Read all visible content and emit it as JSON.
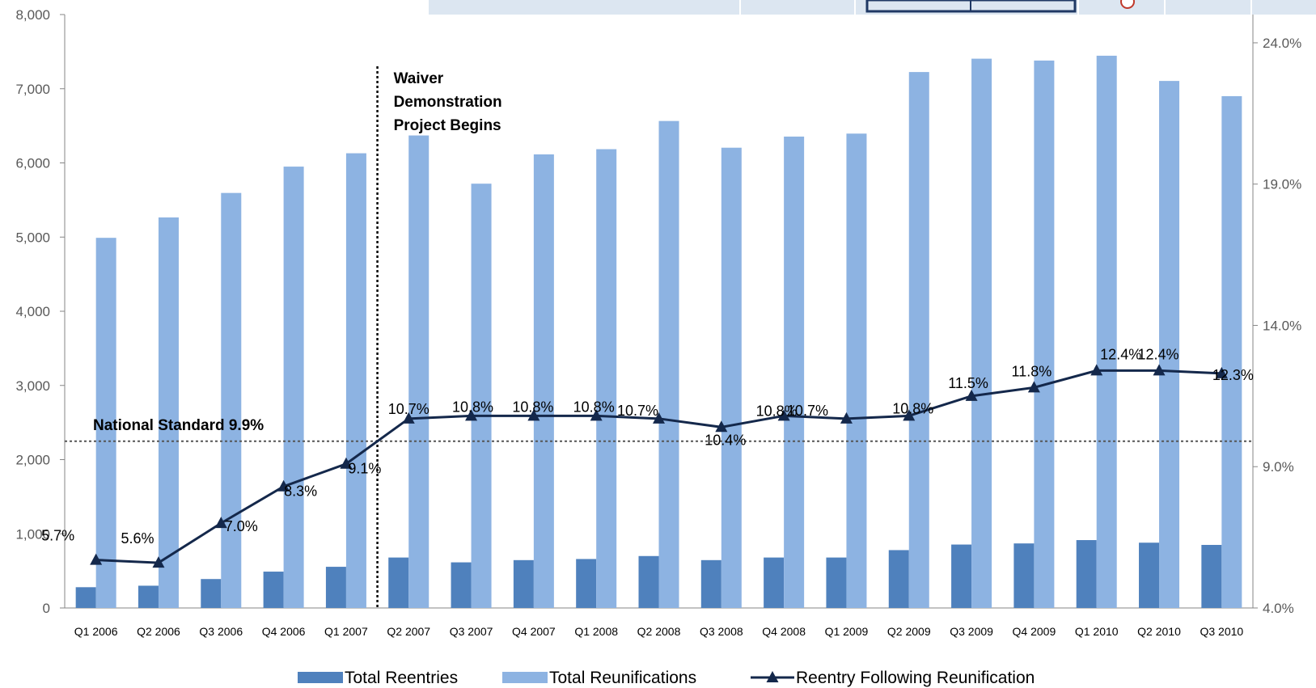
{
  "chart_data": {
    "type": "bar",
    "categories": [
      "Q1 2006",
      "Q2 2006",
      "Q3 2006",
      "Q4 2006",
      "Q1 2007",
      "Q2 2007",
      "Q3 2007",
      "Q4 2007",
      "Q1 2008",
      "Q2 2008",
      "Q3 2008",
      "Q4 2008",
      "Q1 2009",
      "Q2 2009",
      "Q3 2009",
      "Q4 2009",
      "Q1 2010",
      "Q2 2010",
      "Q3 2010"
    ],
    "series": [
      {
        "name": "Total Reentries",
        "type": "bar",
        "axis": "left",
        "color": "#4f81bd",
        "values": [
          280,
          300,
          390,
          490,
          555,
          680,
          615,
          645,
          660,
          700,
          645,
          680,
          680,
          780,
          855,
          870,
          915,
          880,
          850
        ]
      },
      {
        "name": "Total Reunifications",
        "type": "bar",
        "axis": "left",
        "color": "#8db3e2",
        "values": [
          4990,
          5265,
          5595,
          5950,
          6130,
          6370,
          5720,
          6115,
          6185,
          6565,
          6205,
          6355,
          6395,
          7225,
          7405,
          7380,
          7445,
          7105,
          6900
        ]
      },
      {
        "name": "Reentry Following Reunification",
        "type": "line",
        "axis": "right",
        "color": "#14284b",
        "values": [
          5.7,
          5.6,
          7.0,
          8.3,
          9.1,
          10.7,
          10.8,
          10.8,
          10.8,
          10.7,
          10.4,
          10.8,
          10.7,
          10.8,
          11.5,
          11.8,
          12.4,
          12.4,
          12.3
        ],
        "labels": [
          "5.7%",
          "5.6%",
          "7.0%",
          "8.3%",
          "9.1%",
          "10.7%",
          "10.8%",
          "10.8%",
          "10.8%",
          "10.7%",
          "10.4%",
          "10.8%",
          "10.7%",
          "10.8%",
          "11.5%",
          "11.8%",
          "12.4%",
          "12.4%",
          "12.3%"
        ]
      }
    ],
    "y_left": {
      "ylim": [
        0,
        8000
      ],
      "ticks": [
        0,
        1000,
        2000,
        3000,
        4000,
        5000,
        6000,
        7000,
        8000
      ],
      "tick_labels": [
        "0",
        "1,000",
        "2,000",
        "3,000",
        "4,000",
        "5,000",
        "6,000",
        "7,000",
        "8,000"
      ]
    },
    "y_right": {
      "ylim": [
        4.0,
        25.0
      ],
      "ticks": [
        4,
        9,
        14,
        19,
        24
      ],
      "tick_labels": [
        "4.0%",
        "9.0%",
        "14.0%",
        "19.0%",
        "24.0%"
      ]
    },
    "reference_line": {
      "label": "National Standard 9.9%",
      "value": 9.9,
      "axis": "right"
    },
    "annotation": {
      "lines": [
        "Waiver",
        "Demonstration",
        "Project Begins"
      ],
      "between": [
        "Q1 2007",
        "Q2 2007"
      ]
    },
    "legend": {
      "position": "bottom"
    },
    "grid": false
  }
}
